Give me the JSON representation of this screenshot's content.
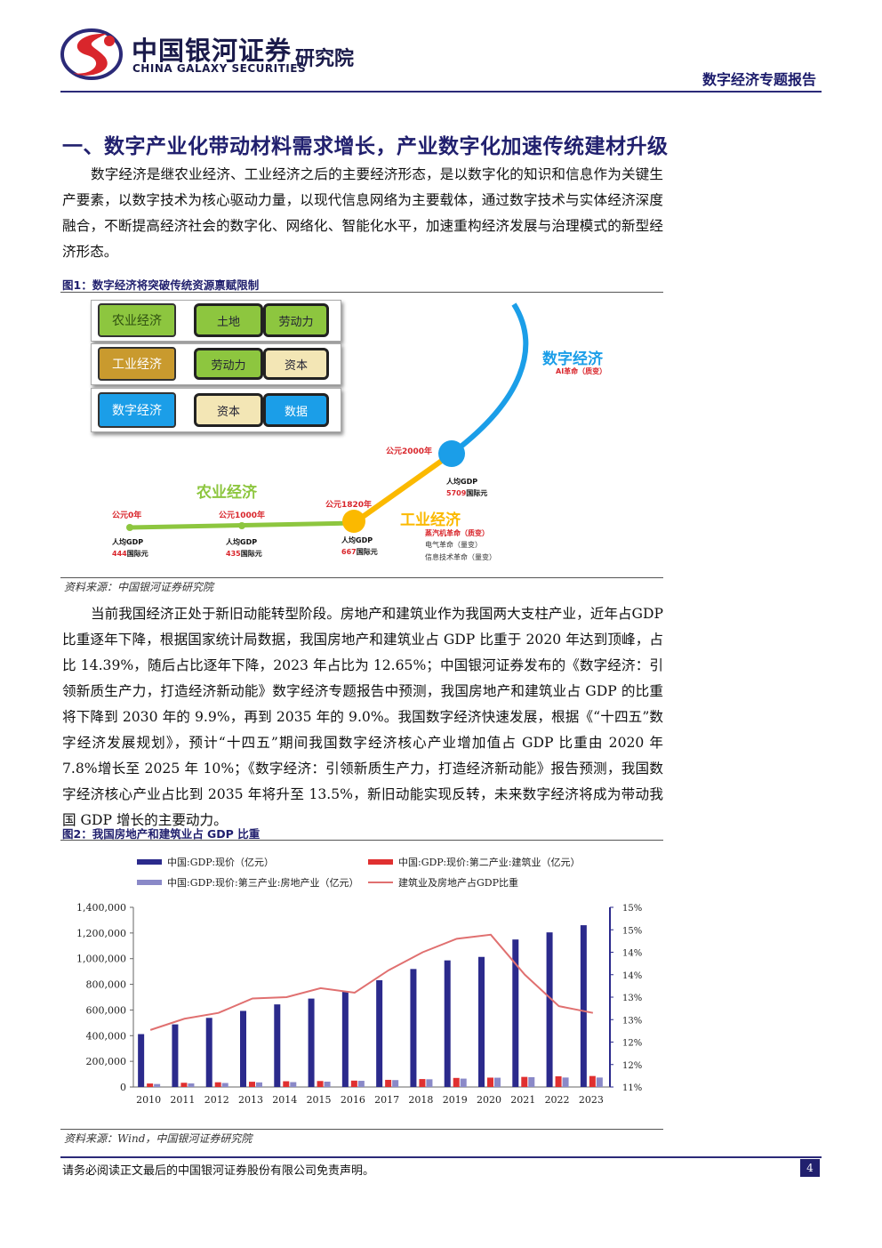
{
  "header": {
    "company_cn": "中国银河证券",
    "company_en": "CHINA GALAXY SECURITIES",
    "institute": "研究院",
    "report_type": "数字经济专题报告"
  },
  "section": {
    "title": "一、数字产业化带动材料需求增长，产业数字化加速传统建材升级"
  },
  "paragraphs": [
    "数字经济是继农业经济、工业经济之后的主要经济形态，是以数字化的知识和信息作为关键生产要素，以数字技术为核心驱动力量，以现代信息网络为主要载体，通过数字技术与实体经济深度融合，不断提高经济社会的数字化、网络化、智能化水平，加速重构经济发展与治理模式的新型经济形态。",
    "当前我国经济正处于新旧动能转型阶段。房地产和建筑业作为我国两大支柱产业，近年占GDP 比重逐年下降，根据国家统计局数据，我国房地产和建筑业占 GDP 比重于 2020 年达到顶峰，占比 14.39%，随后占比逐年下降，2023 年占比为 12.65%；中国银河证券发布的《数字经济：引领新质生产力，打造经济新动能》数字经济专题报告中预测，我国房地产和建筑业占 GDP 的比重将下降到 2030 年的 9.9%，再到 2035 年的 9.0%。我国数字经济快速发展，根据《“十四五”数字经济发展规划》，预计“十四五”期间我国数字经济核心产业增加值占 GDP 比重由 2020 年 7.8%增长至 2025 年 10%；《数字经济：引领新质生产力，打造经济新动能》报告预测，我国数字经济核心产业占比到 2035 年将升至 13.5%，新旧动能实现反转，未来数字经济将成为带动我国 GDP 增长的主要动力。"
  ],
  "figure1": {
    "title": "图1：数字经济将突破传统资源禀赋限制",
    "source": "资料来源：中国银河证券研究院",
    "rows": [
      {
        "economy": "农业经济",
        "factors": [
          "土地",
          "劳动力"
        ]
      },
      {
        "economy": "工业经济",
        "factors": [
          "劳动力",
          "资本"
        ]
      },
      {
        "economy": "数字经济",
        "factors": [
          "资本",
          "数据"
        ]
      }
    ],
    "timeline": {
      "agri_label": "农业经济",
      "ind_label": "工业经济",
      "dig_label": "数字经济",
      "dig_sub": "AI革命（质变）",
      "ind_notes": [
        "蒸汽机革命（质变）",
        "电气革命（量变）",
        "信息技术革命（量变）"
      ],
      "points": [
        {
          "year": "公元0年",
          "gdp_label": "人均GDP",
          "gdp_value": "444",
          "unit": "国际元"
        },
        {
          "year": "公元1000年",
          "gdp_label": "人均GDP",
          "gdp_value": "435",
          "unit": "国际元"
        },
        {
          "year": "公元1820年",
          "gdp_label": "人均GDP",
          "gdp_value": "667",
          "unit": "国际元"
        },
        {
          "year": "公元2000年",
          "gdp_label": "人均GDP",
          "gdp_value": "5709",
          "unit": "国际元"
        }
      ]
    },
    "colors": {
      "agri": "#8dc63f",
      "ind": "#fbb900",
      "dig": "#1b9ee8"
    }
  },
  "figure2": {
    "title": "图2：我国房地产和建筑业占 GDP 比重",
    "source": "资料来源：Wind，中国银河证券研究院",
    "chart_data": {
      "type": "bar",
      "categories": [
        "2010",
        "2011",
        "2012",
        "2013",
        "2014",
        "2015",
        "2016",
        "2017",
        "2018",
        "2019",
        "2020",
        "2021",
        "2022",
        "2023"
      ],
      "series": [
        {
          "name": "中国:GDP:现价（亿元）",
          "color": "#2b2a8c",
          "axis": "left",
          "values": [
            412119,
            487940,
            538580,
            592963,
            643563,
            688858,
            746395,
            832036,
            919281,
            986515,
            1013567,
            1149237,
            1204724,
            1260582
          ]
        },
        {
          "name": "中国:GDP:现价:第二产业:建筑业（亿元）",
          "color": "#e03030",
          "axis": "left",
          "values": [
            27260,
            32926,
            36897,
            40897,
            44881,
            46627,
            49703,
            55689,
            61808,
            70648,
            72996,
            78741,
            83383,
            85691
          ]
        },
        {
          "name": "中国:GDP:现价:第三产业:房地产业（亿元）",
          "color": "#8a89c8",
          "axis": "left",
          "values": [
            23326,
            28167,
            31248,
            35988,
            38001,
            41701,
            48191,
            53851,
            60111,
            65361,
            72350,
            76560,
            73821,
            73723
          ]
        },
        {
          "name": "建筑业及房地产占GDP比重",
          "color": "#e07070",
          "axis": "right",
          "type": "line",
          "values": [
            12.27,
            12.52,
            12.65,
            12.97,
            13.0,
            13.2,
            13.1,
            13.6,
            14.0,
            14.3,
            14.39,
            13.5,
            12.8,
            12.65
          ]
        }
      ],
      "left_ticks": [
        "0",
        "200,000",
        "400,000",
        "600,000",
        "800,000",
        "1,000,000",
        "1,200,000",
        "1,400,000"
      ],
      "left_range": [
        0,
        1400000
      ],
      "right_ticks": [
        "11%",
        "12%",
        "12%",
        "13%",
        "13%",
        "14%",
        "14%",
        "15%",
        "15%"
      ],
      "right_range": [
        11,
        15
      ]
    }
  },
  "footer": {
    "disclaimer": "请务必阅读正文最后的中国银河证券股份有限公司免责声明。",
    "page": "4"
  }
}
